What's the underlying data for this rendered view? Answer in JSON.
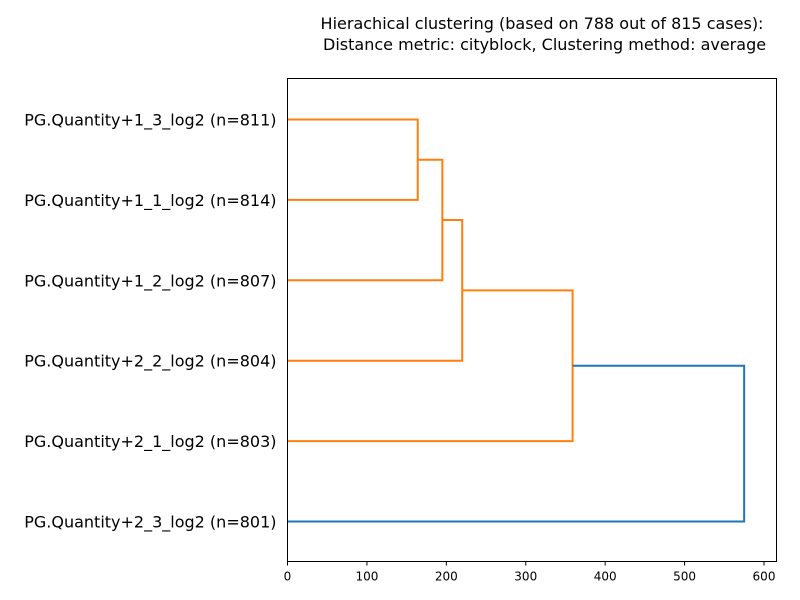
{
  "chart_data": {
    "type": "dendrogram",
    "title_lines": [
      "Hierachical clustering (based on 788 out of 815 cases):",
      " Distance metric: cityblock, Clustering method: average"
    ],
    "xlim": [
      0,
      600
    ],
    "x_ticks": [
      0,
      100,
      200,
      300,
      400,
      500,
      600
    ],
    "grid": false,
    "leaves": [
      "PG.Quantity+1_3_log2 (n=811)",
      "PG.Quantity+1_1_log2 (n=814)",
      "PG.Quantity+1_2_log2 (n=807)",
      "PG.Quantity+2_2_log2 (n=804)",
      "PG.Quantity+2_1_log2 (n=803)",
      "PG.Quantity+2_3_log2 (n=801)"
    ],
    "merges": [
      {
        "a": "L0",
        "b": "L1",
        "height": 164,
        "color": "#ff7f0e"
      },
      {
        "a": "M0",
        "b": "L2",
        "height": 195,
        "color": "#ff7f0e"
      },
      {
        "a": "M1",
        "b": "L3",
        "height": 220,
        "color": "#ff7f0e"
      },
      {
        "a": "M2",
        "b": "L4",
        "height": 359,
        "color": "#ff7f0e"
      },
      {
        "a": "M3",
        "b": "L5",
        "height": 575,
        "color": "#1f77b4"
      }
    ],
    "colors": {
      "cluster": "#ff7f0e",
      "above_threshold": "#1f77b4"
    }
  }
}
